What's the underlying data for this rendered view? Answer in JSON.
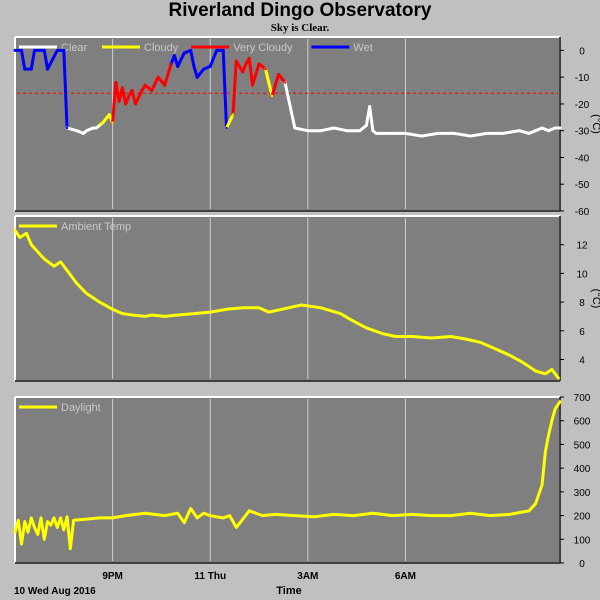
{
  "page": {
    "title": "Riverland Dingo Observatory",
    "subtitle": "Sky is Clear."
  },
  "footer": {
    "date_label": "10 Wed Aug 2016",
    "axis_title": "Time"
  },
  "colors": {
    "background": "#c0c0c0",
    "panel": "#7f7f7f",
    "grid": "#d0d0d0",
    "clear": "#ffffff",
    "cloudy": "#ffff00",
    "very_cloudy": "#ff0000",
    "wet": "#0000ff",
    "threshold": "#ff0000"
  },
  "chart_data": [
    {
      "id": "sky",
      "type": "line",
      "legend": [
        {
          "name": "Clear",
          "color": "#ffffff"
        },
        {
          "name": "Cloudy",
          "color": "#ffff00"
        },
        {
          "name": "Very Cloudy",
          "color": "#ff0000"
        },
        {
          "name": "Wet",
          "color": "#0000ff"
        }
      ],
      "ylabel": "(°C)",
      "ylim": [
        -60,
        5
      ],
      "yticks": [
        0,
        -10,
        -20,
        -30,
        -40,
        -50,
        -60
      ],
      "reference_line": -16,
      "x_range": [
        18.0,
        34.75
      ],
      "x": [
        18.0,
        18.2,
        18.3,
        18.5,
        18.6,
        18.9,
        19.0,
        19.3,
        19.4,
        19.5,
        19.6,
        19.9,
        20.1,
        20.2,
        20.4,
        20.5,
        20.6,
        20.7,
        20.9,
        21.0,
        21.1,
        21.2,
        21.3,
        21.4,
        21.5,
        21.6,
        21.7,
        21.9,
        22.0,
        22.2,
        22.4,
        22.6,
        22.8,
        22.9,
        23.0,
        23.2,
        23.4,
        23.5,
        23.6,
        23.8,
        24.0,
        24.1,
        24.2,
        24.4,
        24.5,
        24.7,
        24.8,
        25.0,
        25.1,
        25.2,
        25.3,
        25.5,
        25.7,
        25.9,
        26.1,
        26.3,
        26.6,
        27.0,
        27.4,
        27.8,
        28.2,
        28.6,
        28.8,
        28.9,
        29.0,
        29.1,
        29.3,
        29.6,
        30.0,
        30.5,
        31.0,
        31.5,
        32.0,
        32.5,
        33.0,
        33.5,
        33.8,
        34.0,
        34.2,
        34.4,
        34.6,
        34.75
      ],
      "y": [
        0,
        0,
        -7,
        -7,
        0,
        0,
        -7,
        0,
        0,
        0,
        -29,
        -30,
        -31,
        -30,
        -29,
        -29,
        -28,
        -27,
        -24,
        -27,
        -12,
        -19,
        -14,
        -20,
        -17,
        -15,
        -20,
        -15,
        -13,
        -15,
        -10,
        -13,
        -5,
        -2,
        -6,
        -1,
        0,
        -6,
        -10,
        -7,
        -6,
        -3,
        0,
        0,
        -29,
        -24,
        -4,
        -8,
        -5,
        -3,
        -13,
        -5,
        -7,
        -17,
        -9,
        -12,
        -29,
        -30,
        -30,
        -29,
        -30,
        -30,
        -28,
        -21,
        -30,
        -31,
        -31,
        -31,
        -31,
        -32,
        -31,
        -31,
        -32,
        -31,
        -31,
        -30,
        -31,
        -30,
        -29,
        -30,
        -29,
        -29
      ],
      "category": [
        "Wet",
        "Wet",
        "Wet",
        "Wet",
        "Wet",
        "Wet",
        "Wet",
        "Wet",
        "Wet",
        "Wet",
        "Wet",
        "Clear",
        "Clear",
        "Clear",
        "Clear",
        "Clear",
        "Clear",
        "Cloudy",
        "Cloudy",
        "Cloudy",
        "Very Cloudy",
        "Very Cloudy",
        "Very Cloudy",
        "Very Cloudy",
        "Very Cloudy",
        "Very Cloudy",
        "Very Cloudy",
        "Very Cloudy",
        "Very Cloudy",
        "Very Cloudy",
        "Very Cloudy",
        "Very Cloudy",
        "Very Cloudy",
        "Wet",
        "Wet",
        "Wet",
        "Wet",
        "Wet",
        "Wet",
        "Wet",
        "Wet",
        "Wet",
        "Wet",
        "Wet",
        "Wet",
        "Cloudy",
        "Very Cloudy",
        "Very Cloudy",
        "Very Cloudy",
        "Very Cloudy",
        "Very Cloudy",
        "Very Cloudy",
        "Very Cloudy",
        "Cloudy",
        "Very Cloudy",
        "Very Cloudy",
        "Clear",
        "Clear",
        "Clear",
        "Clear",
        "Clear",
        "Clear",
        "Clear",
        "Clear",
        "Clear",
        "Clear",
        "Clear",
        "Clear",
        "Clear",
        "Clear",
        "Clear",
        "Clear",
        "Clear",
        "Clear",
        "Clear",
        "Clear",
        "Clear",
        "Clear",
        "Clear",
        "Clear",
        "Clear",
        "Clear"
      ]
    },
    {
      "id": "ambient",
      "type": "line",
      "series": [
        {
          "name": "Ambient Temp",
          "color": "#ffff00",
          "x": [
            18.0,
            18.15,
            18.35,
            18.5,
            18.7,
            18.9,
            19.2,
            19.4,
            19.6,
            19.9,
            20.2,
            20.6,
            21.0,
            21.3,
            21.6,
            22.0,
            22.2,
            22.6,
            23.0,
            23.5,
            24.0,
            24.5,
            25.0,
            25.5,
            25.8,
            26.2,
            26.8,
            27.4,
            28.0,
            28.3,
            28.8,
            29.3,
            29.7,
            30.2,
            30.8,
            31.4,
            31.9,
            32.3,
            32.8,
            33.2,
            33.6,
            34.0,
            34.3,
            34.5,
            34.7
          ],
          "y": [
            13.0,
            12.5,
            12.8,
            12.0,
            11.5,
            11.0,
            10.5,
            10.8,
            10.2,
            9.3,
            8.6,
            8.0,
            7.5,
            7.2,
            7.1,
            7.0,
            7.1,
            7.0,
            7.1,
            7.2,
            7.3,
            7.5,
            7.6,
            7.6,
            7.3,
            7.5,
            7.8,
            7.6,
            7.2,
            6.8,
            6.2,
            5.8,
            5.6,
            5.6,
            5.5,
            5.6,
            5.4,
            5.2,
            4.7,
            4.3,
            3.8,
            3.2,
            3.0,
            3.3,
            2.7
          ]
        }
      ],
      "ylabel": "(°C)",
      "ylim": [
        2.5,
        14
      ],
      "yticks": [
        12,
        10,
        8,
        6,
        4
      ],
      "x_range": [
        18.0,
        34.75
      ]
    },
    {
      "id": "daylight",
      "type": "line",
      "series": [
        {
          "name": "Daylight",
          "color": "#ffff00",
          "x": [
            18.0,
            18.1,
            18.2,
            18.3,
            18.4,
            18.5,
            18.6,
            18.7,
            18.8,
            18.9,
            19.0,
            19.1,
            19.2,
            19.3,
            19.4,
            19.5,
            19.6,
            19.7,
            19.8,
            20.2,
            20.6,
            21.0,
            21.4,
            22.0,
            22.6,
            23.0,
            23.2,
            23.4,
            23.6,
            23.8,
            24.0,
            24.2,
            24.4,
            24.6,
            24.8,
            25.2,
            25.6,
            26.0,
            26.6,
            27.2,
            27.8,
            28.4,
            29.0,
            29.6,
            30.2,
            30.8,
            31.4,
            32.0,
            32.6,
            33.2,
            33.8,
            34.0,
            34.2,
            34.3,
            34.4,
            34.5,
            34.6,
            34.75
          ],
          "y": [
            130,
            180,
            80,
            175,
            130,
            190,
            150,
            120,
            190,
            100,
            175,
            160,
            190,
            150,
            190,
            140,
            195,
            60,
            180,
            185,
            190,
            190,
            200,
            210,
            200,
            210,
            170,
            230,
            190,
            210,
            200,
            195,
            190,
            200,
            150,
            220,
            200,
            205,
            200,
            195,
            205,
            200,
            210,
            200,
            205,
            200,
            200,
            210,
            200,
            205,
            220,
            250,
            330,
            470,
            540,
            600,
            650,
            680
          ]
        }
      ],
      "ylim": [
        0,
        700
      ],
      "yticks": [
        700,
        600,
        500,
        400,
        300,
        200,
        100,
        0
      ],
      "x_range": [
        18.0,
        34.75
      ]
    }
  ],
  "x_axis": {
    "ticks": [
      {
        "x": 21,
        "label": "9PM"
      },
      {
        "x": 24,
        "label": "11 Thu"
      },
      {
        "x": 27,
        "label": "3AM"
      },
      {
        "x": 30,
        "label": "6AM"
      }
    ]
  }
}
